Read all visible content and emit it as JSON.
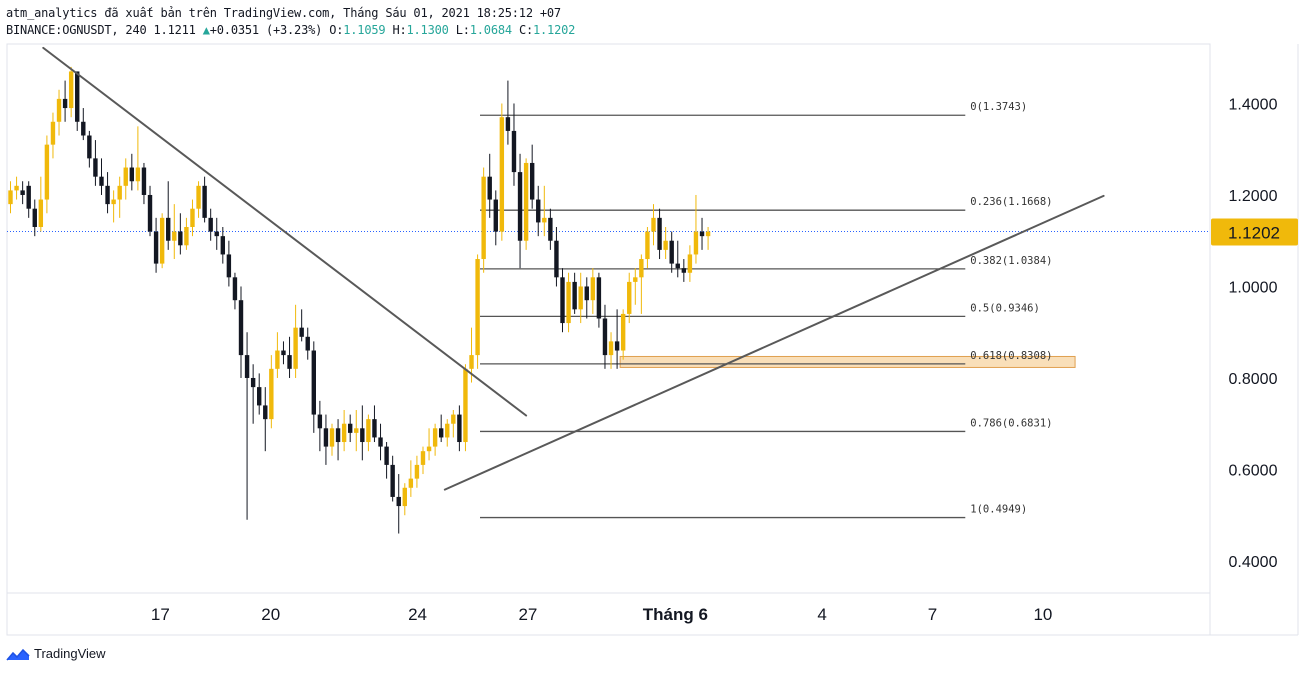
{
  "header": {
    "line1": "atm_analytics đã xuất bản trên TradingView.com, Tháng Sáu 01, 2021 18:25:12 +07",
    "symbol": "BINANCE:OGNUSDT, 240",
    "last": "1.1211",
    "change": "+0.0351 (+3.23%)",
    "o_label": "O:",
    "o": "1.1059",
    "h_label": "H:",
    "h": "1.1300",
    "l_label": "L:",
    "l": "1.0684",
    "c_label": "C:",
    "c": "1.1202"
  },
  "footer": {
    "brand": "TradingView"
  },
  "colors": {
    "bull": "#f0b90b",
    "bear": "#131722",
    "price_tag": "#f0b90b",
    "fib_line": "#555555",
    "trend_line": "#595959",
    "zone": "#f5c98a"
  },
  "chart_data": {
    "type": "candlestick",
    "ylim": [
      0.33,
      1.53
    ],
    "y_ticks": [
      "1.4000",
      "1.2000",
      "1.0000",
      "0.8000",
      "0.6000",
      "0.4000"
    ],
    "y_tick_values": [
      1.4,
      1.2,
      1.0,
      0.8,
      0.6,
      0.4
    ],
    "x_ticks": [
      {
        "label": "17",
        "bar": 24.7,
        "bold": false
      },
      {
        "label": "20",
        "bar": 42.9,
        "bold": false
      },
      {
        "label": "24",
        "bar": 67.1,
        "bold": false
      },
      {
        "label": "27",
        "bar": 85.3,
        "bold": false
      },
      {
        "label": "Tháng 6",
        "bar": 109.6,
        "bold": true
      },
      {
        "label": "4",
        "bar": 133.8,
        "bold": false
      },
      {
        "label": "7",
        "bar": 152.0,
        "bold": false
      },
      {
        "label": "10",
        "bar": 170.2,
        "bold": false
      }
    ],
    "current_price": "1.1202",
    "current_value": 1.1202,
    "candles": [
      [
        1.18,
        1.23,
        1.16,
        1.21
      ],
      [
        1.21,
        1.24,
        1.19,
        1.22
      ],
      [
        1.21,
        1.23,
        1.18,
        1.2
      ],
      [
        1.22,
        1.23,
        1.15,
        1.17
      ],
      [
        1.17,
        1.19,
        1.11,
        1.13
      ],
      [
        1.13,
        1.24,
        1.12,
        1.19
      ],
      [
        1.19,
        1.33,
        1.16,
        1.31
      ],
      [
        1.31,
        1.38,
        1.28,
        1.36
      ],
      [
        1.36,
        1.43,
        1.33,
        1.41
      ],
      [
        1.41,
        1.45,
        1.36,
        1.39
      ],
      [
        1.39,
        1.48,
        1.37,
        1.47
      ],
      [
        1.47,
        1.47,
        1.34,
        1.36
      ],
      [
        1.36,
        1.39,
        1.32,
        1.33
      ],
      [
        1.33,
        1.34,
        1.26,
        1.28
      ],
      [
        1.28,
        1.32,
        1.22,
        1.24
      ],
      [
        1.24,
        1.28,
        1.2,
        1.22
      ],
      [
        1.22,
        1.25,
        1.16,
        1.18
      ],
      [
        1.18,
        1.21,
        1.14,
        1.19
      ],
      [
        1.19,
        1.24,
        1.15,
        1.22
      ],
      [
        1.22,
        1.28,
        1.19,
        1.26
      ],
      [
        1.26,
        1.29,
        1.21,
        1.23
      ],
      [
        1.23,
        1.35,
        1.21,
        1.26
      ],
      [
        1.26,
        1.27,
        1.18,
        1.2
      ],
      [
        1.2,
        1.22,
        1.11,
        1.12
      ],
      [
        1.12,
        1.15,
        1.03,
        1.05
      ],
      [
        1.05,
        1.16,
        1.04,
        1.15
      ],
      [
        1.15,
        1.23,
        1.08,
        1.1
      ],
      [
        1.1,
        1.18,
        1.06,
        1.12
      ],
      [
        1.12,
        1.16,
        1.07,
        1.09
      ],
      [
        1.09,
        1.15,
        1.08,
        1.13
      ],
      [
        1.13,
        1.19,
        1.11,
        1.17
      ],
      [
        1.17,
        1.23,
        1.15,
        1.22
      ],
      [
        1.22,
        1.24,
        1.14,
        1.15
      ],
      [
        1.15,
        1.17,
        1.1,
        1.12
      ],
      [
        1.12,
        1.15,
        1.08,
        1.11
      ],
      [
        1.11,
        1.13,
        1.05,
        1.07
      ],
      [
        1.07,
        1.1,
        1.0,
        1.02
      ],
      [
        1.02,
        1.03,
        0.95,
        0.97
      ],
      [
        0.97,
        1.0,
        0.8,
        0.85
      ],
      [
        0.85,
        0.9,
        0.49,
        0.8
      ],
      [
        0.8,
        0.83,
        0.7,
        0.78
      ],
      [
        0.78,
        0.81,
        0.72,
        0.74
      ],
      [
        0.74,
        0.78,
        0.64,
        0.71
      ],
      [
        0.71,
        0.85,
        0.69,
        0.82
      ],
      [
        0.82,
        0.9,
        0.8,
        0.86
      ],
      [
        0.86,
        0.88,
        0.83,
        0.85
      ],
      [
        0.85,
        0.89,
        0.8,
        0.82
      ],
      [
        0.82,
        0.96,
        0.8,
        0.91
      ],
      [
        0.91,
        0.95,
        0.88,
        0.89
      ],
      [
        0.89,
        0.91,
        0.84,
        0.86
      ],
      [
        0.86,
        0.88,
        0.68,
        0.72
      ],
      [
        0.72,
        0.75,
        0.64,
        0.69
      ],
      [
        0.69,
        0.72,
        0.61,
        0.65
      ],
      [
        0.65,
        0.7,
        0.63,
        0.69
      ],
      [
        0.69,
        0.71,
        0.62,
        0.66
      ],
      [
        0.66,
        0.73,
        0.64,
        0.7
      ],
      [
        0.7,
        0.72,
        0.66,
        0.68
      ],
      [
        0.68,
        0.73,
        0.64,
        0.69
      ],
      [
        0.69,
        0.74,
        0.62,
        0.66
      ],
      [
        0.66,
        0.72,
        0.64,
        0.71
      ],
      [
        0.71,
        0.74,
        0.66,
        0.67
      ],
      [
        0.67,
        0.7,
        0.62,
        0.65
      ],
      [
        0.65,
        0.66,
        0.58,
        0.61
      ],
      [
        0.61,
        0.63,
        0.53,
        0.54
      ],
      [
        0.54,
        0.59,
        0.46,
        0.52
      ],
      [
        0.52,
        0.57,
        0.5,
        0.56
      ],
      [
        0.56,
        0.62,
        0.54,
        0.58
      ],
      [
        0.58,
        0.63,
        0.56,
        0.61
      ],
      [
        0.61,
        0.65,
        0.59,
        0.64
      ],
      [
        0.64,
        0.69,
        0.62,
        0.65
      ],
      [
        0.65,
        0.7,
        0.63,
        0.69
      ],
      [
        0.69,
        0.72,
        0.66,
        0.67
      ],
      [
        0.67,
        0.71,
        0.65,
        0.7
      ],
      [
        0.7,
        0.73,
        0.67,
        0.72
      ],
      [
        0.72,
        0.74,
        0.64,
        0.66
      ],
      [
        0.66,
        0.83,
        0.64,
        0.82
      ],
      [
        0.82,
        0.91,
        0.79,
        0.85
      ],
      [
        0.85,
        1.07,
        0.82,
        1.06
      ],
      [
        1.06,
        1.26,
        1.03,
        1.24
      ],
      [
        1.24,
        1.29,
        1.15,
        1.19
      ],
      [
        1.19,
        1.21,
        1.09,
        1.12
      ],
      [
        1.12,
        1.4,
        1.1,
        1.37
      ],
      [
        1.37,
        1.45,
        1.31,
        1.34
      ],
      [
        1.34,
        1.4,
        1.22,
        1.25
      ],
      [
        1.25,
        1.29,
        1.04,
        1.1
      ],
      [
        1.1,
        1.28,
        1.08,
        1.27
      ],
      [
        1.27,
        1.31,
        1.17,
        1.19
      ],
      [
        1.19,
        1.22,
        1.11,
        1.14
      ],
      [
        1.14,
        1.22,
        1.11,
        1.15
      ],
      [
        1.15,
        1.17,
        1.08,
        1.1
      ],
      [
        1.1,
        1.13,
        1.0,
        1.02
      ],
      [
        1.02,
        1.04,
        0.9,
        0.92
      ],
      [
        0.92,
        1.03,
        0.9,
        1.01
      ],
      [
        1.01,
        1.03,
        0.94,
        0.95
      ],
      [
        0.95,
        1.03,
        0.92,
        1.0
      ],
      [
        1.0,
        1.02,
        0.93,
        0.97
      ],
      [
        0.97,
        1.04,
        0.94,
        1.02
      ],
      [
        1.02,
        1.03,
        0.91,
        0.93
      ],
      [
        0.93,
        0.96,
        0.82,
        0.85
      ],
      [
        0.85,
        0.9,
        0.82,
        0.88
      ],
      [
        0.88,
        0.95,
        0.82,
        0.86
      ],
      [
        0.86,
        0.95,
        0.84,
        0.94
      ],
      [
        0.94,
        1.03,
        0.92,
        1.01
      ],
      [
        1.01,
        1.04,
        0.96,
        1.02
      ],
      [
        1.02,
        1.07,
        0.94,
        1.06
      ],
      [
        1.06,
        1.13,
        1.04,
        1.12
      ],
      [
        1.12,
        1.18,
        1.09,
        1.15
      ],
      [
        1.15,
        1.17,
        1.06,
        1.08
      ],
      [
        1.08,
        1.13,
        1.06,
        1.1
      ],
      [
        1.1,
        1.12,
        1.03,
        1.05
      ],
      [
        1.05,
        1.1,
        1.02,
        1.04
      ],
      [
        1.04,
        1.06,
        1.01,
        1.03
      ],
      [
        1.03,
        1.09,
        1.01,
        1.07
      ],
      [
        1.07,
        1.2,
        1.05,
        1.12
      ],
      [
        1.12,
        1.15,
        1.08,
        1.11
      ],
      [
        1.11,
        1.13,
        1.08,
        1.12
      ]
    ],
    "fib_levels": [
      {
        "label": "0(1.3743)",
        "value": 1.3743
      },
      {
        "label": "0.236(1.1668)",
        "value": 1.1668
      },
      {
        "label": "0.382(1.0384)",
        "value": 1.0384
      },
      {
        "label": "0.5(0.9346)",
        "value": 0.9346
      },
      {
        "label": "0.618(0.8308)",
        "value": 0.8308
      },
      {
        "label": "0.786(0.6831)",
        "value": 0.6831
      },
      {
        "label": "1(0.4949)",
        "value": 0.4949
      }
    ],
    "fib_bar_range": [
      77.4,
      157.4
    ],
    "zone": {
      "bar_range": [
        100.5,
        175.5
      ],
      "value_range": [
        0.823,
        0.847
      ]
    },
    "trend_lines": [
      {
        "name": "resistance-trendline",
        "points": [
          [
            5.4,
            1.5215
          ],
          [
            85.0,
            0.718
          ]
        ]
      },
      {
        "name": "support-trendline",
        "points": [
          [
            71.6,
            0.556
          ],
          [
            180.2,
            1.198
          ]
        ]
      }
    ]
  }
}
